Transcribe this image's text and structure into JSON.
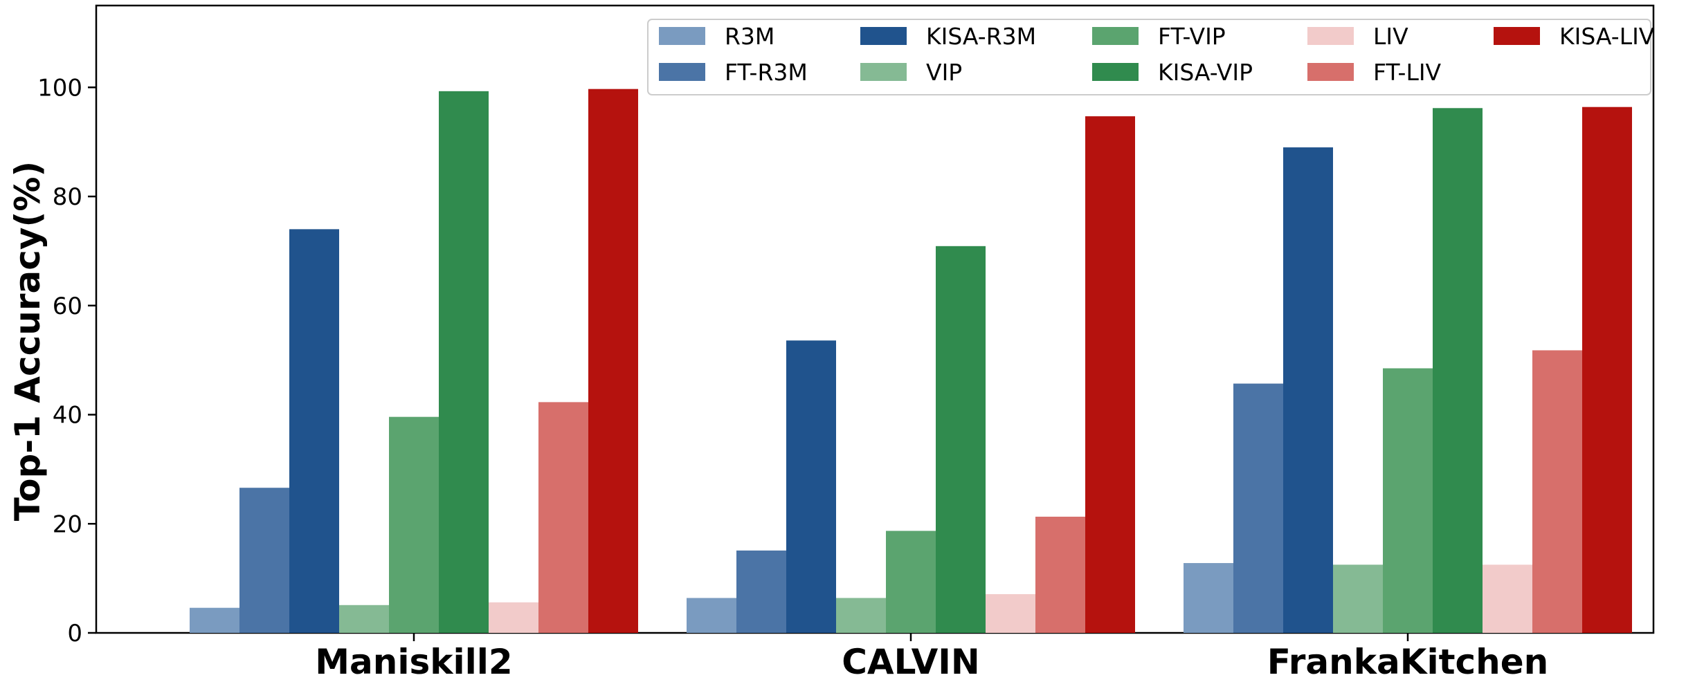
{
  "chart_data": {
    "type": "bar",
    "categories": [
      "Maniskill2",
      "CALVIN",
      "FrankaKitchen"
    ],
    "ylabel": "Top-1 Accuracy(%)",
    "xlabel": "",
    "ylim": [
      0,
      115
    ],
    "yticks": [
      0,
      20,
      40,
      60,
      80,
      100
    ],
    "grid": false,
    "legend_position": "top-right",
    "series": [
      {
        "name": "R3M",
        "color": "#7a9bc0",
        "values": [
          4.6,
          6.4,
          12.8
        ]
      },
      {
        "name": "FT-R3M",
        "color": "#4b74a6",
        "values": [
          26.6,
          15.1,
          45.7
        ]
      },
      {
        "name": "KISA-R3M",
        "color": "#20538d",
        "values": [
          74.0,
          53.6,
          89.0
        ]
      },
      {
        "name": "VIP",
        "color": "#85ba94",
        "values": [
          5.1,
          6.4,
          12.5
        ]
      },
      {
        "name": "FT-VIP",
        "color": "#5ba46f",
        "values": [
          39.6,
          18.7,
          48.5
        ]
      },
      {
        "name": "KISA-VIP",
        "color": "#308b4e",
        "values": [
          99.3,
          70.9,
          96.2
        ]
      },
      {
        "name": "LIV",
        "color": "#f2cbca",
        "values": [
          5.6,
          7.1,
          12.5
        ]
      },
      {
        "name": "FT-LIV",
        "color": "#d76f6b",
        "values": [
          42.3,
          21.3,
          51.8
        ]
      },
      {
        "name": "KISA-LIV",
        "color": "#b5120e",
        "values": [
          99.7,
          94.7,
          96.4
        ]
      }
    ]
  }
}
